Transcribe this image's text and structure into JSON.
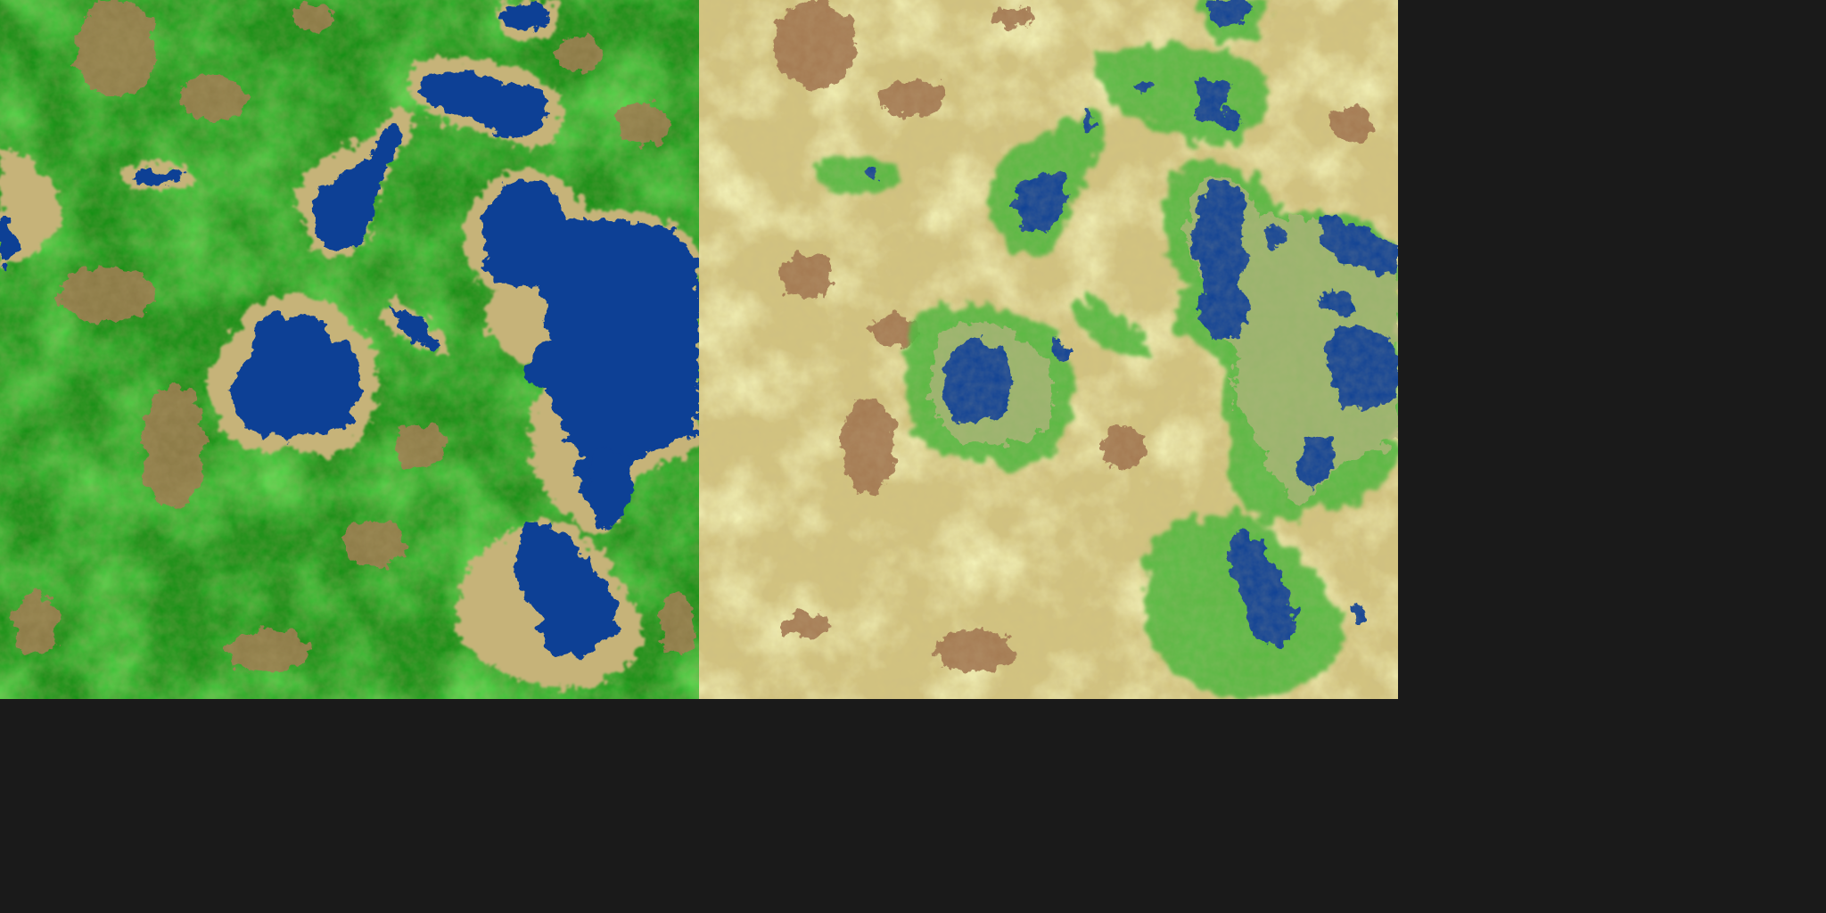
{
  "panels": [
    {
      "id": "panel-a",
      "name": "grassland-terrain-map"
    },
    {
      "id": "panel-b",
      "name": "arid-terrain-map"
    }
  ],
  "palette": {
    "water": "#0b3d91",
    "shore": "#c9b77a",
    "dirt": "#9a6b4a",
    "grass_dark": "#128a12",
    "grass_light": "#8fcf3a",
    "sand": "#d2c27c",
    "sand_ridge": "#ecec7e",
    "grass_ring": "#4cb83a"
  },
  "terrain_layers": [
    "water",
    "shore",
    "dirt",
    "grass",
    "sand"
  ]
}
